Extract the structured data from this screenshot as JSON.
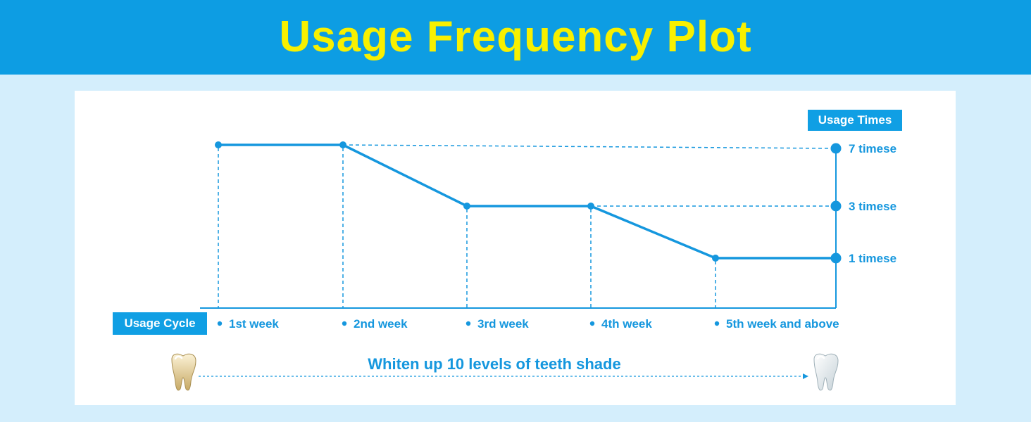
{
  "title": "Usage Frequency Plot",
  "chart_data": {
    "type": "line",
    "title": "Usage Frequency Plot",
    "ylabel": "Usage Times",
    "xlabel": "Usage Cycle",
    "categories": [
      "1st week",
      "2nd week",
      "3rd week",
      "4th week",
      "5th week and above"
    ],
    "series": [
      {
        "values": [
          7,
          7,
          3,
          3,
          1
        ]
      }
    ],
    "y_levels": [
      {
        "value": 7,
        "label": "7 timese"
      },
      {
        "value": 3,
        "label": "3 timese"
      },
      {
        "value": 1,
        "label": "1 timese"
      }
    ],
    "grid": false,
    "line_color": "#1597de"
  },
  "tagline": "Whiten up 10 levels of teeth shade",
  "colors": {
    "header_bg": "#0d9de3",
    "title_text": "#f8f000",
    "page_bg": "#d4eefc",
    "accent": "#1597de"
  },
  "icons": {
    "left": "yellow-tooth-icon",
    "right": "white-tooth-icon"
  }
}
